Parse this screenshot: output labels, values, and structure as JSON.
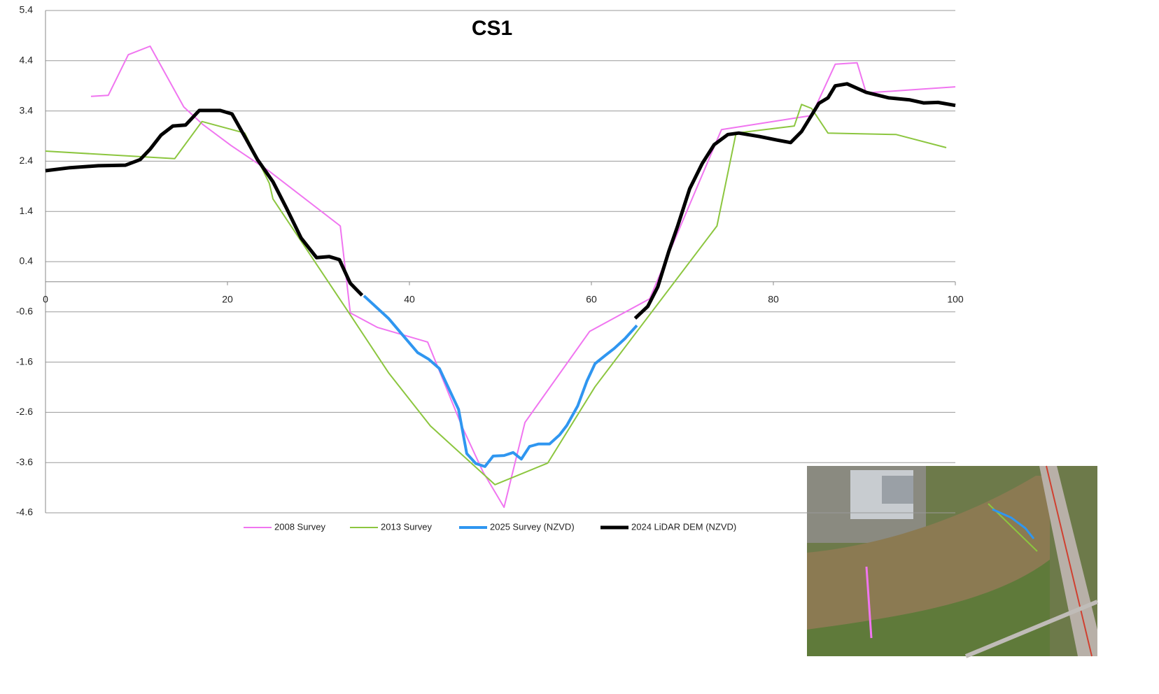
{
  "chart_data": {
    "type": "line",
    "title": "CS1",
    "xlim": [
      0,
      100
    ],
    "xticks": [
      0,
      20,
      40,
      60,
      80,
      100
    ],
    "ylim": [
      -4.6,
      5.4
    ],
    "yticks": [
      5.4,
      4.4,
      3.4,
      2.4,
      1.4,
      0.4,
      -0.6,
      -1.6,
      -2.6,
      -3.6,
      -4.6
    ],
    "grid": true,
    "legend": "bottom",
    "series": [
      {
        "name": "2008 Survey",
        "color": "#f075f0",
        "line_width": 2,
        "x": [
          5,
          6.9,
          9.1,
          11.5,
          15.2,
          17.3,
          20.4,
          24.6,
          32.4,
          33.5,
          36.5,
          42.0,
          45.8,
          48.1,
          50.4,
          52.7,
          59.8,
          66.4,
          74.3,
          84.2,
          86.8,
          89.2,
          90.2,
          100
        ],
        "values": [
          3.69,
          3.71,
          4.52,
          4.69,
          3.48,
          3.13,
          2.71,
          2.2,
          1.11,
          -0.62,
          -0.91,
          -1.2,
          -2.89,
          -3.79,
          -4.49,
          -2.8,
          -0.99,
          -0.34,
          3.03,
          3.31,
          4.33,
          4.36,
          3.76,
          3.88
        ]
      },
      {
        "name": "2013 Survey",
        "color": "#8cc63f",
        "line_width": 2,
        "x": [
          0,
          14.2,
          17.2,
          21.9,
          24.6,
          25,
          33.5,
          37.7,
          42.3,
          49.4,
          55.2,
          60.4,
          73.8,
          75.9,
          82.3,
          83.1,
          84.2,
          86,
          93.5,
          99
        ],
        "values": [
          2.6,
          2.45,
          3.19,
          2.96,
          1.96,
          1.65,
          -0.66,
          -1.81,
          -2.87,
          -4.04,
          -3.61,
          -2.09,
          1.11,
          2.96,
          3.1,
          3.53,
          3.45,
          2.96,
          2.93,
          2.67
        ]
      },
      {
        "name": "2025 Survey (NZVD)",
        "color": "#2f96f0",
        "line_width": 4,
        "x": [
          35,
          37.7,
          39.2,
          40.9,
          42.1,
          43.3,
          45.4,
          46.3,
          47.3,
          48.3,
          49.2,
          50.4,
          51.4,
          52.3,
          53.2,
          54.2,
          55.4,
          56.5,
          57.3,
          58.5,
          59.5,
          60.4,
          61.5,
          62.5,
          63.7,
          65
        ],
        "values": [
          -0.28,
          -0.73,
          -1.05,
          -1.41,
          -1.54,
          -1.73,
          -2.54,
          -3.42,
          -3.62,
          -3.68,
          -3.47,
          -3.46,
          -3.4,
          -3.53,
          -3.28,
          -3.23,
          -3.23,
          -3.05,
          -2.86,
          -2.47,
          -1.98,
          -1.63,
          -1.47,
          -1.33,
          -1.13,
          -0.87
        ]
      },
      {
        "name": "2024 LiDAR DEM (NZVD)",
        "color": "#000000",
        "line_width": 5,
        "x": [
          0,
          2.7,
          5.8,
          8.8,
          10.4,
          11.5,
          12.7,
          14,
          15.4,
          16.9,
          19.2,
          20.5,
          21.9,
          23.3,
          25,
          26.5,
          28.1,
          29.8,
          31.2,
          32.3,
          33.5,
          34.8,
          null,
          64.8,
          66.2,
          67.3,
          68.5,
          69.5,
          70.8,
          72.2,
          73.5,
          75,
          76.2,
          78.5,
          80.4,
          81.9,
          83.1,
          85,
          86,
          86.8,
          88.1,
          90.2,
          92.7,
          95,
          96.5,
          98.1,
          100
        ],
        "values": [
          2.21,
          2.27,
          2.31,
          2.32,
          2.43,
          2.64,
          2.92,
          3.1,
          3.12,
          3.41,
          3.41,
          3.34,
          2.89,
          2.43,
          1.99,
          1.46,
          0.87,
          0.48,
          0.5,
          0.44,
          -0.03,
          -0.27,
          null,
          -0.73,
          -0.49,
          -0.1,
          0.6,
          1.12,
          1.85,
          2.36,
          2.73,
          2.93,
          2.96,
          2.89,
          2.82,
          2.77,
          2.99,
          3.55,
          3.66,
          3.9,
          3.94,
          3.77,
          3.66,
          3.62,
          3.56,
          3.57,
          3.51
        ]
      }
    ]
  }
}
